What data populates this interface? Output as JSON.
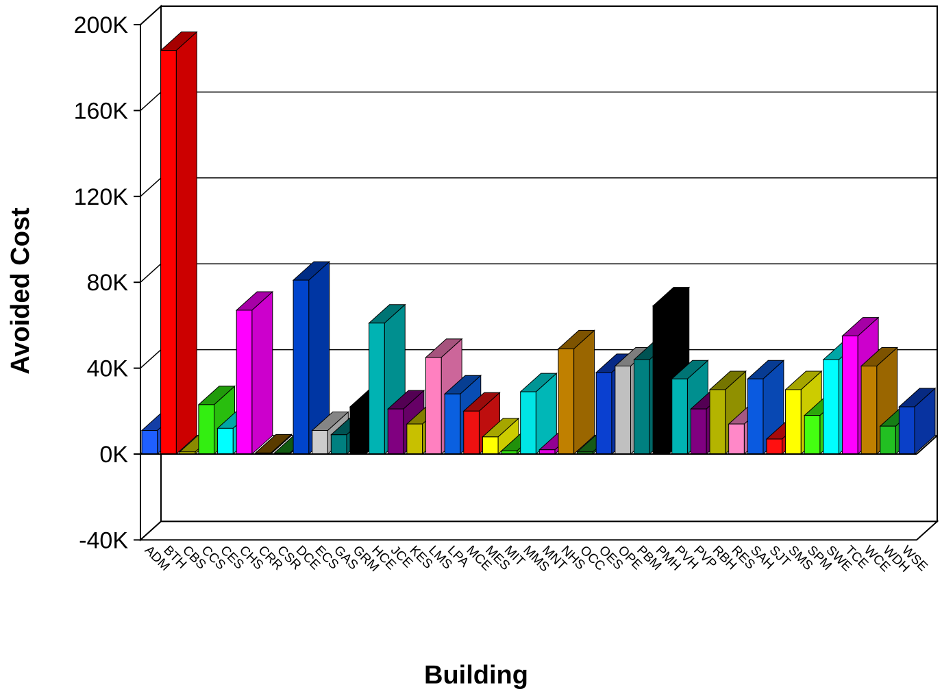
{
  "chart_data": {
    "type": "bar",
    "title": "",
    "xlabel": "Building",
    "ylabel": "Avoided Cost",
    "ylim": [
      -40000,
      200000
    ],
    "yticks": [
      -40000,
      0,
      40000,
      80000,
      120000,
      160000,
      200000
    ],
    "ytick_labels": [
      "-40K",
      "0K",
      "40K",
      "80K",
      "120K",
      "160K",
      "200K"
    ],
    "grid": true,
    "legend": "none",
    "categories": [
      "ADM",
      "BTH",
      "CBS",
      "CCS",
      "CES",
      "CHS",
      "CRR",
      "CSR",
      "DCE",
      "ECS",
      "GAS",
      "GRM",
      "HCE",
      "JCE",
      "KES",
      "LMS",
      "LPA",
      "MCE",
      "MES",
      "MIT",
      "MMS",
      "MNT",
      "NHS",
      "OCC",
      "OES",
      "OPE",
      "PBM",
      "PMH",
      "PVH",
      "PVP",
      "RBH",
      "RES",
      "SAH",
      "SJT",
      "SMS",
      "SPM",
      "SWE",
      "TCE",
      "WCE",
      "WDH",
      "WSE"
    ],
    "values": [
      11000,
      188000,
      1000,
      23000,
      12000,
      67000,
      500,
      500,
      81000,
      11000,
      9000,
      22000,
      61000,
      21000,
      14000,
      45000,
      28000,
      20000,
      8000,
      1500,
      29000,
      2000,
      49000,
      1000,
      38000,
      41000,
      44000,
      69000,
      35000,
      21000,
      30000,
      14000,
      35000,
      7000,
      30000,
      18000,
      44000,
      55000,
      41000,
      13000,
      22000
    ],
    "colors": [
      "#1f5fff",
      "#ff0000",
      "#d4d400",
      "#33ee11",
      "#00ffff",
      "#ff00ff",
      "#8a5a00",
      "#1a8a1a",
      "#0044cc",
      "#cccccc",
      "#008080",
      "#000000",
      "#00b3b3",
      "#800080",
      "#c8c000",
      "#ff80c0",
      "#0a60e0",
      "#ee1111",
      "#ffff00",
      "#33dd11",
      "#00e5e5",
      "#e000e0",
      "#c08000",
      "#228b22",
      "#0a40d0",
      "#c0c0c0",
      "#008080",
      "#000000",
      "#00b3b3",
      "#800080",
      "#b4b400",
      "#ff88c8",
      "#0a5ae0",
      "#ff1010",
      "#ffff00",
      "#44ff11",
      "#00ffff",
      "#ff00ff",
      "#c08000",
      "#22c022",
      "#0a40c8"
    ]
  }
}
